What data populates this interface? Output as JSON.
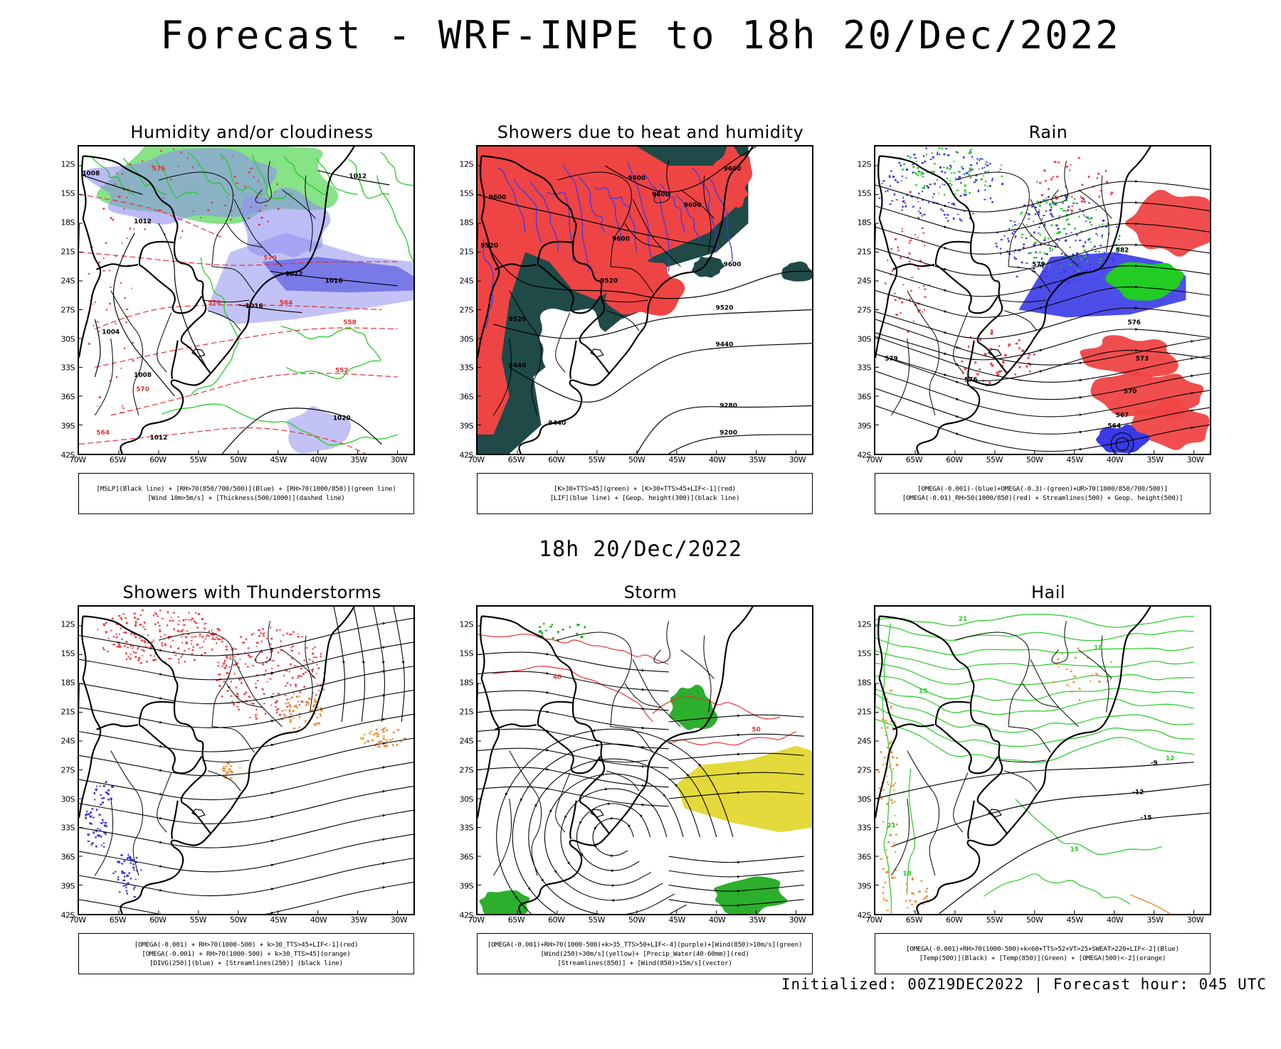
{
  "page": {
    "title": "Forecast - WRF-INPE to 18h 20/Dec/2022",
    "mid_time": "18h 20/Dec/2022",
    "footer": "Initialized: 00Z19DEC2022 | Forecast hour: 045 UTC"
  },
  "axes": {
    "lat_labels": [
      "12S",
      "15S",
      "18S",
      "21S",
      "24S",
      "27S",
      "30S",
      "33S",
      "36S",
      "39S",
      "42S"
    ],
    "lon_labels": [
      "70W",
      "65W",
      "60W",
      "55W",
      "50W",
      "45W",
      "40W",
      "35W",
      "30W"
    ]
  },
  "panels": [
    {
      "id": "humidity",
      "title": "Humidity and/or cloudiness",
      "legend": [
        "[MSLP](Black line) + [RH>70(850/700/500)](Blue) + [RH>70(1000/850)](green line)",
        "[Wind 10m>5m/s] + [Thickness(500/1000)](dashed line)"
      ],
      "labels": [
        {
          "text": "1008",
          "color": "#000000",
          "lon": -68.5,
          "lat": -13
        },
        {
          "text": "1012",
          "color": "#000000",
          "lon": -35,
          "lat": -13.3
        },
        {
          "text": "1012",
          "color": "#000000",
          "lon": -62,
          "lat": -18
        },
        {
          "text": "1016",
          "color": "#000000",
          "lon": -48,
          "lat": -26.8
        },
        {
          "text": "1012",
          "color": "#000000",
          "lon": -43,
          "lat": -23.5
        },
        {
          "text": "1016",
          "color": "#000000",
          "lon": -38,
          "lat": -24.2
        },
        {
          "text": "1004",
          "color": "#000000",
          "lon": -66,
          "lat": -29.5
        },
        {
          "text": "1008",
          "color": "#000000",
          "lon": -62,
          "lat": -34
        },
        {
          "text": "1012",
          "color": "#000000",
          "lon": -60,
          "lat": -40.5
        },
        {
          "text": "1020",
          "color": "#000000",
          "lon": -37,
          "lat": -38.5
        },
        {
          "text": "576",
          "color": "#e83030",
          "lon": -60,
          "lat": -12.5
        },
        {
          "text": "570",
          "color": "#e83030",
          "lon": -46,
          "lat": -21.8
        },
        {
          "text": "570",
          "color": "#e83030",
          "lon": -53,
          "lat": -26.5
        },
        {
          "text": "564",
          "color": "#e83030",
          "lon": -44,
          "lat": -26.5
        },
        {
          "text": "558",
          "color": "#e83030",
          "lon": -36,
          "lat": -28.5
        },
        {
          "text": "552",
          "color": "#e83030",
          "lon": -37,
          "lat": -33.5
        },
        {
          "text": "570",
          "color": "#e83030",
          "lon": -62,
          "lat": -35.5
        },
        {
          "text": "564",
          "color": "#e83030",
          "lon": -67,
          "lat": -40
        }
      ]
    },
    {
      "id": "showers-heat",
      "title": "Showers due to heat and humidity",
      "legend": [
        "[K>30+TTS>45](green) + [K>30+TTS>45+LIF<-1](red)",
        "[LIF](blue line) + [Geop. height(300)](black line)"
      ],
      "labels": [
        {
          "text": "9600",
          "color": "#000000",
          "lon": -67.5,
          "lat": -15.5
        },
        {
          "text": "9600",
          "color": "#000000",
          "lon": -50,
          "lat": -13.5
        },
        {
          "text": "9600",
          "color": "#000000",
          "lon": -47,
          "lat": -15.2
        },
        {
          "text": "9600",
          "color": "#000000",
          "lon": -43,
          "lat": -16.3
        },
        {
          "text": "9600",
          "color": "#000000",
          "lon": -38,
          "lat": -12.5
        },
        {
          "text": "9600",
          "color": "#000000",
          "lon": -52,
          "lat": -19.8
        },
        {
          "text": "9600",
          "color": "#000000",
          "lon": -38,
          "lat": -22.5
        },
        {
          "text": "9520",
          "color": "#000000",
          "lon": -68.5,
          "lat": -20.5
        },
        {
          "text": "9520",
          "color": "#000000",
          "lon": -53.5,
          "lat": -24.2
        },
        {
          "text": "9520",
          "color": "#000000",
          "lon": -65,
          "lat": -28.2
        },
        {
          "text": "9520",
          "color": "#000000",
          "lon": -39,
          "lat": -27
        },
        {
          "text": "9440",
          "color": "#000000",
          "lon": -65,
          "lat": -33
        },
        {
          "text": "9440",
          "color": "#000000",
          "lon": -39,
          "lat": -30.8
        },
        {
          "text": "9440",
          "color": "#000000",
          "lon": -60,
          "lat": -39
        },
        {
          "text": "9280",
          "color": "#000000",
          "lon": -38.5,
          "lat": -37.2
        },
        {
          "text": "9200",
          "color": "#000000",
          "lon": -38.5,
          "lat": -40
        }
      ]
    },
    {
      "id": "rain",
      "title": "Rain",
      "legend": [
        "[OMEGA(-0.001)-(blue)+OMEGA(-0.3)-(green)+UR>70(1000/850/700/500)]",
        "[OMEGA(-0.01)_RH>50(1000/850)(red) + Streamlines(500) + Geop. height(500)]"
      ],
      "labels": [
        {
          "text": "582",
          "color": "#000000",
          "lon": -39,
          "lat": -21
        },
        {
          "text": "579",
          "color": "#000000",
          "lon": -49.5,
          "lat": -22.5
        },
        {
          "text": "576",
          "color": "#000000",
          "lon": -37.5,
          "lat": -28.5
        },
        {
          "text": "573",
          "color": "#000000",
          "lon": -36.5,
          "lat": -32.3
        },
        {
          "text": "570",
          "color": "#000000",
          "lon": -38,
          "lat": -35.7
        },
        {
          "text": "567",
          "color": "#000000",
          "lon": -39,
          "lat": -38.2
        },
        {
          "text": "564",
          "color": "#000000",
          "lon": -40,
          "lat": -39.3
        },
        {
          "text": "576",
          "color": "#000000",
          "lon": -58,
          "lat": -34.5
        },
        {
          "text": "579",
          "color": "#000000",
          "lon": -68,
          "lat": -32.3
        }
      ]
    },
    {
      "id": "thunderstorms",
      "title": "Showers with Thunderstorms",
      "legend": [
        "[OMEGA(-0.001) + RH>70(1000-500) + k>30_TTS>45+LIF<-1](red)",
        "[OMEGA(-0.001) + RH>70(1000-500) + k>30_TTS>45](orange)",
        "[DIVG(250)](blue) + [Streamlines(250)] (black line)"
      ],
      "labels": []
    },
    {
      "id": "storm",
      "title": "Storm",
      "legend": [
        "[OMEGA(-0.001)+RH>70(1000-500)+k>35_TTS>50+LIF<-4](purple)+[Wind(850)>10m/s](green)",
        "[Wind(250)>30m/s](yellow)+ [Precip_Water(40-60mm)](red)",
        "[Streamlines(850)] + [Wind(850)>15m/s](vector)"
      ],
      "labels": [
        {
          "text": "40",
          "color": "#e83030",
          "lon": -60,
          "lat": -17.5
        },
        {
          "text": "50",
          "color": "#e83030",
          "lon": -35,
          "lat": -23
        }
      ]
    },
    {
      "id": "hail",
      "title": "Hail",
      "legend": [
        "[OMEGA(-0.001)+RH>70(1000-500)+k<60+TTS>52+VT>25+SWEAT>220+LIF<-2](Blue)",
        "[Temp(500)](Black) + [Temp(850)](Green) + [OMEGA(500)<-2](orange)"
      ],
      "labels": [
        {
          "text": "21",
          "color": "#22cc22",
          "lon": -59,
          "lat": -11.5
        },
        {
          "text": "18",
          "color": "#22cc22",
          "lon": -42,
          "lat": -14.5
        },
        {
          "text": "15",
          "color": "#22cc22",
          "lon": -64,
          "lat": -19
        },
        {
          "text": "-9",
          "color": "#000000",
          "lon": -35,
          "lat": -26.5
        },
        {
          "text": "12",
          "color": "#22cc22",
          "lon": -33,
          "lat": -26
        },
        {
          "text": "-12",
          "color": "#000000",
          "lon": -37,
          "lat": -29.5
        },
        {
          "text": "-15",
          "color": "#000000",
          "lon": -36,
          "lat": -32.2
        },
        {
          "text": "21",
          "color": "#22cc22",
          "lon": -68,
          "lat": -33
        },
        {
          "text": "15",
          "color": "#22cc22",
          "lon": -45,
          "lat": -35.5
        },
        {
          "text": "18",
          "color": "#22cc22",
          "lon": -66,
          "lat": -38
        }
      ]
    }
  ]
}
